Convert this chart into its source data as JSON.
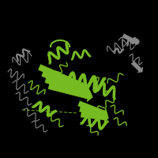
{
  "background_color": "#000000",
  "figure_size": [
    2.0,
    2.0
  ],
  "dpi": 100,
  "green_color": "#77bb22",
  "gray_color": "#666666",
  "light_gray": "#888888"
}
